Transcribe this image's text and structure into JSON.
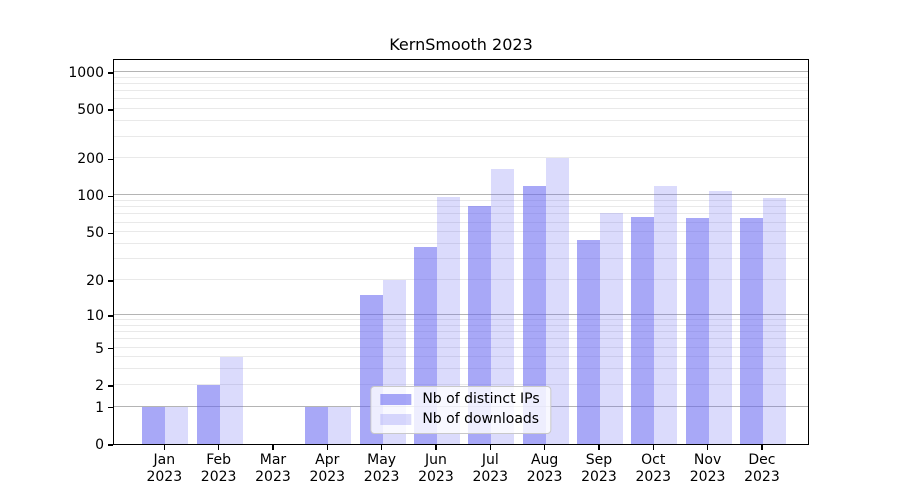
{
  "chart_data": {
    "type": "bar",
    "title": "KernSmooth 2023",
    "categories": [
      "Jan 2023",
      "Feb 2023",
      "Mar 2023",
      "Apr 2023",
      "May 2023",
      "Jun 2023",
      "Jul 2023",
      "Aug 2023",
      "Sep 2023",
      "Oct 2023",
      "Nov 2023",
      "Dec 2023"
    ],
    "x_tick_months": [
      "Jan",
      "Feb",
      "Mar",
      "Apr",
      "May",
      "Jun",
      "Jul",
      "Aug",
      "Sep",
      "Oct",
      "Nov",
      "Dec"
    ],
    "x_tick_year": "2023",
    "series": [
      {
        "name": "Nb of distinct IPs",
        "color": "rgba(100,100,240,0.56)",
        "color_hex": "#a8a8f8",
        "values": [
          1,
          2,
          0,
          1,
          15,
          38,
          82,
          120,
          43,
          67,
          66,
          65
        ]
      },
      {
        "name": "Nb of downloads",
        "color": "rgba(100,100,240,0.23)",
        "color_hex": "#dcdcfb",
        "values": [
          1,
          4,
          0,
          1,
          20,
          98,
          165,
          200,
          72,
          120,
          108,
          95
        ]
      }
    ],
    "yticks": [
      0,
      1,
      2,
      5,
      10,
      20,
      50,
      100,
      200,
      500,
      1000
    ],
    "yscale": "log1p",
    "ylim": [
      0,
      1340
    ],
    "xlabel": "",
    "ylabel": "",
    "grid": true,
    "legend_position": "lower center",
    "colors": {
      "grid_major": "#b4b4b4",
      "grid_minor": "#e9e9e9",
      "axis": "#000000",
      "background": "#ffffff"
    }
  }
}
